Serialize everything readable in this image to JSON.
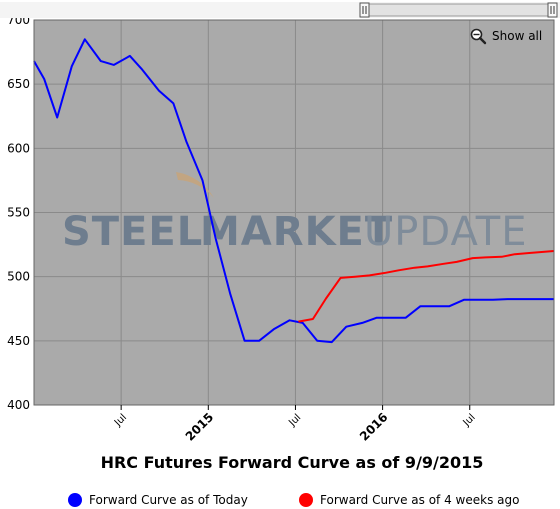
{
  "chart_data": {
    "type": "line",
    "title": "HRC Futures Forward Curve as of 9/9/2015",
    "watermark": {
      "word1": "STEEL",
      "word2": "MARKET",
      "word3": "UPDATE"
    },
    "ylim": [
      400,
      700
    ],
    "y_ticks": [
      400,
      450,
      500,
      550,
      600,
      650,
      700
    ],
    "x_ticks": [
      {
        "label": "Jul",
        "pos": 6,
        "major": false
      },
      {
        "label": "2015",
        "pos": 12,
        "major": true
      },
      {
        "label": "Jul",
        "pos": 18,
        "major": false
      },
      {
        "label": "2016",
        "pos": 24,
        "major": true
      },
      {
        "label": "Jul",
        "pos": 30,
        "major": false
      }
    ],
    "x_range": [
      0,
      35.8
    ],
    "series": [
      {
        "name": "Forward Curve as of Today",
        "color": "#0000ff",
        "points": [
          [
            0,
            668
          ],
          [
            0.7,
            654
          ],
          [
            1.6,
            624
          ],
          [
            2.6,
            664
          ],
          [
            3.5,
            685
          ],
          [
            4.6,
            668
          ],
          [
            5.5,
            665
          ],
          [
            6.6,
            672
          ],
          [
            7.4,
            662
          ],
          [
            8.6,
            645
          ],
          [
            9.6,
            635
          ],
          [
            10.5,
            605
          ],
          [
            11.6,
            575
          ],
          [
            12.5,
            530
          ],
          [
            13.5,
            487
          ],
          [
            14.5,
            450
          ],
          [
            15.5,
            450
          ],
          [
            16.5,
            459
          ],
          [
            17.6,
            466
          ],
          [
            18.5,
            464
          ],
          [
            19.5,
            450
          ],
          [
            20.5,
            449
          ],
          [
            21.5,
            461
          ],
          [
            22.6,
            464
          ],
          [
            23.6,
            468
          ],
          [
            24.5,
            468
          ],
          [
            25.6,
            468
          ],
          [
            26.6,
            477
          ],
          [
            27.5,
            477
          ],
          [
            28.6,
            477
          ],
          [
            29.6,
            482
          ],
          [
            30.6,
            482
          ],
          [
            31.6,
            482
          ],
          [
            32.6,
            482.5
          ],
          [
            33.6,
            482.5
          ],
          [
            34.6,
            482.5
          ],
          [
            35.8,
            482.5
          ]
        ]
      },
      {
        "name": "Forward Curve as of 4 weeks ago",
        "color": "#ff0000",
        "points": [
          [
            18.2,
            465
          ],
          [
            19.2,
            467
          ],
          [
            20.1,
            483
          ],
          [
            21.1,
            499
          ],
          [
            22.1,
            500
          ],
          [
            23.1,
            501
          ],
          [
            24.2,
            503
          ],
          [
            25.1,
            505
          ],
          [
            26.2,
            507
          ],
          [
            27.1,
            508
          ],
          [
            28.2,
            510
          ],
          [
            29.1,
            511.5
          ],
          [
            30.2,
            514.5
          ],
          [
            31.1,
            515
          ],
          [
            32.2,
            515.5
          ],
          [
            33.1,
            517.5
          ],
          [
            34.2,
            518.5
          ],
          [
            35.8,
            520
          ]
        ]
      }
    ]
  },
  "controls": {
    "show_all_label": "Show all",
    "zoom_icon": "zoom-out-icon"
  },
  "colors": {
    "plot_bg": "#aaaaaa",
    "grid": "#8a8a8a",
    "border": "#666666"
  }
}
